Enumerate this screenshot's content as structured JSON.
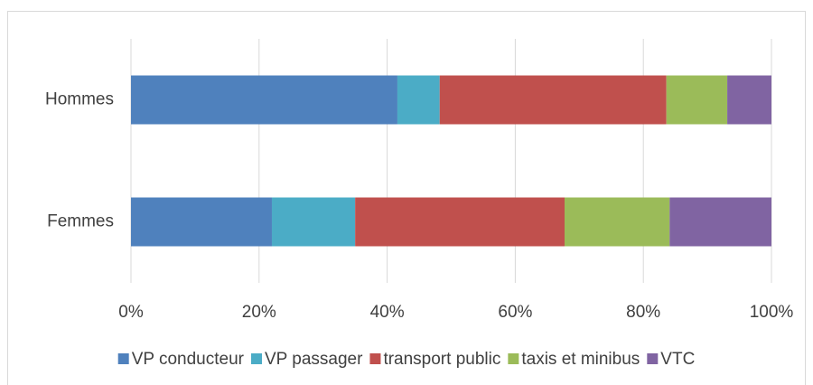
{
  "chart_data": {
    "type": "stacked_barh",
    "categories": [
      "Hommes",
      "Femmes"
    ],
    "series": [
      {
        "name": "VP conducteur",
        "color": "#4f81bd",
        "values": [
          41.6,
          22.0
        ]
      },
      {
        "name": "VP passager",
        "color": "#4bacc6",
        "values": [
          6.6,
          13.0
        ]
      },
      {
        "name": "transport public",
        "color": "#c0504d",
        "values": [
          35.4,
          32.7
        ]
      },
      {
        "name": "taxis et minibus",
        "color": "#9bbb59",
        "values": [
          9.5,
          16.4
        ]
      },
      {
        "name": "VTC",
        "color": "#8064a2",
        "values": [
          6.9,
          15.9
        ]
      }
    ],
    "xlim": [
      0,
      100
    ],
    "xticks": [
      {
        "value": 0,
        "label": "0%"
      },
      {
        "value": 20,
        "label": "20%"
      },
      {
        "value": 40,
        "label": "40%"
      },
      {
        "value": 60,
        "label": "60%"
      },
      {
        "value": 80,
        "label": "80%"
      },
      {
        "value": 100,
        "label": "100%"
      }
    ],
    "grid": true,
    "legend": "bottom"
  }
}
